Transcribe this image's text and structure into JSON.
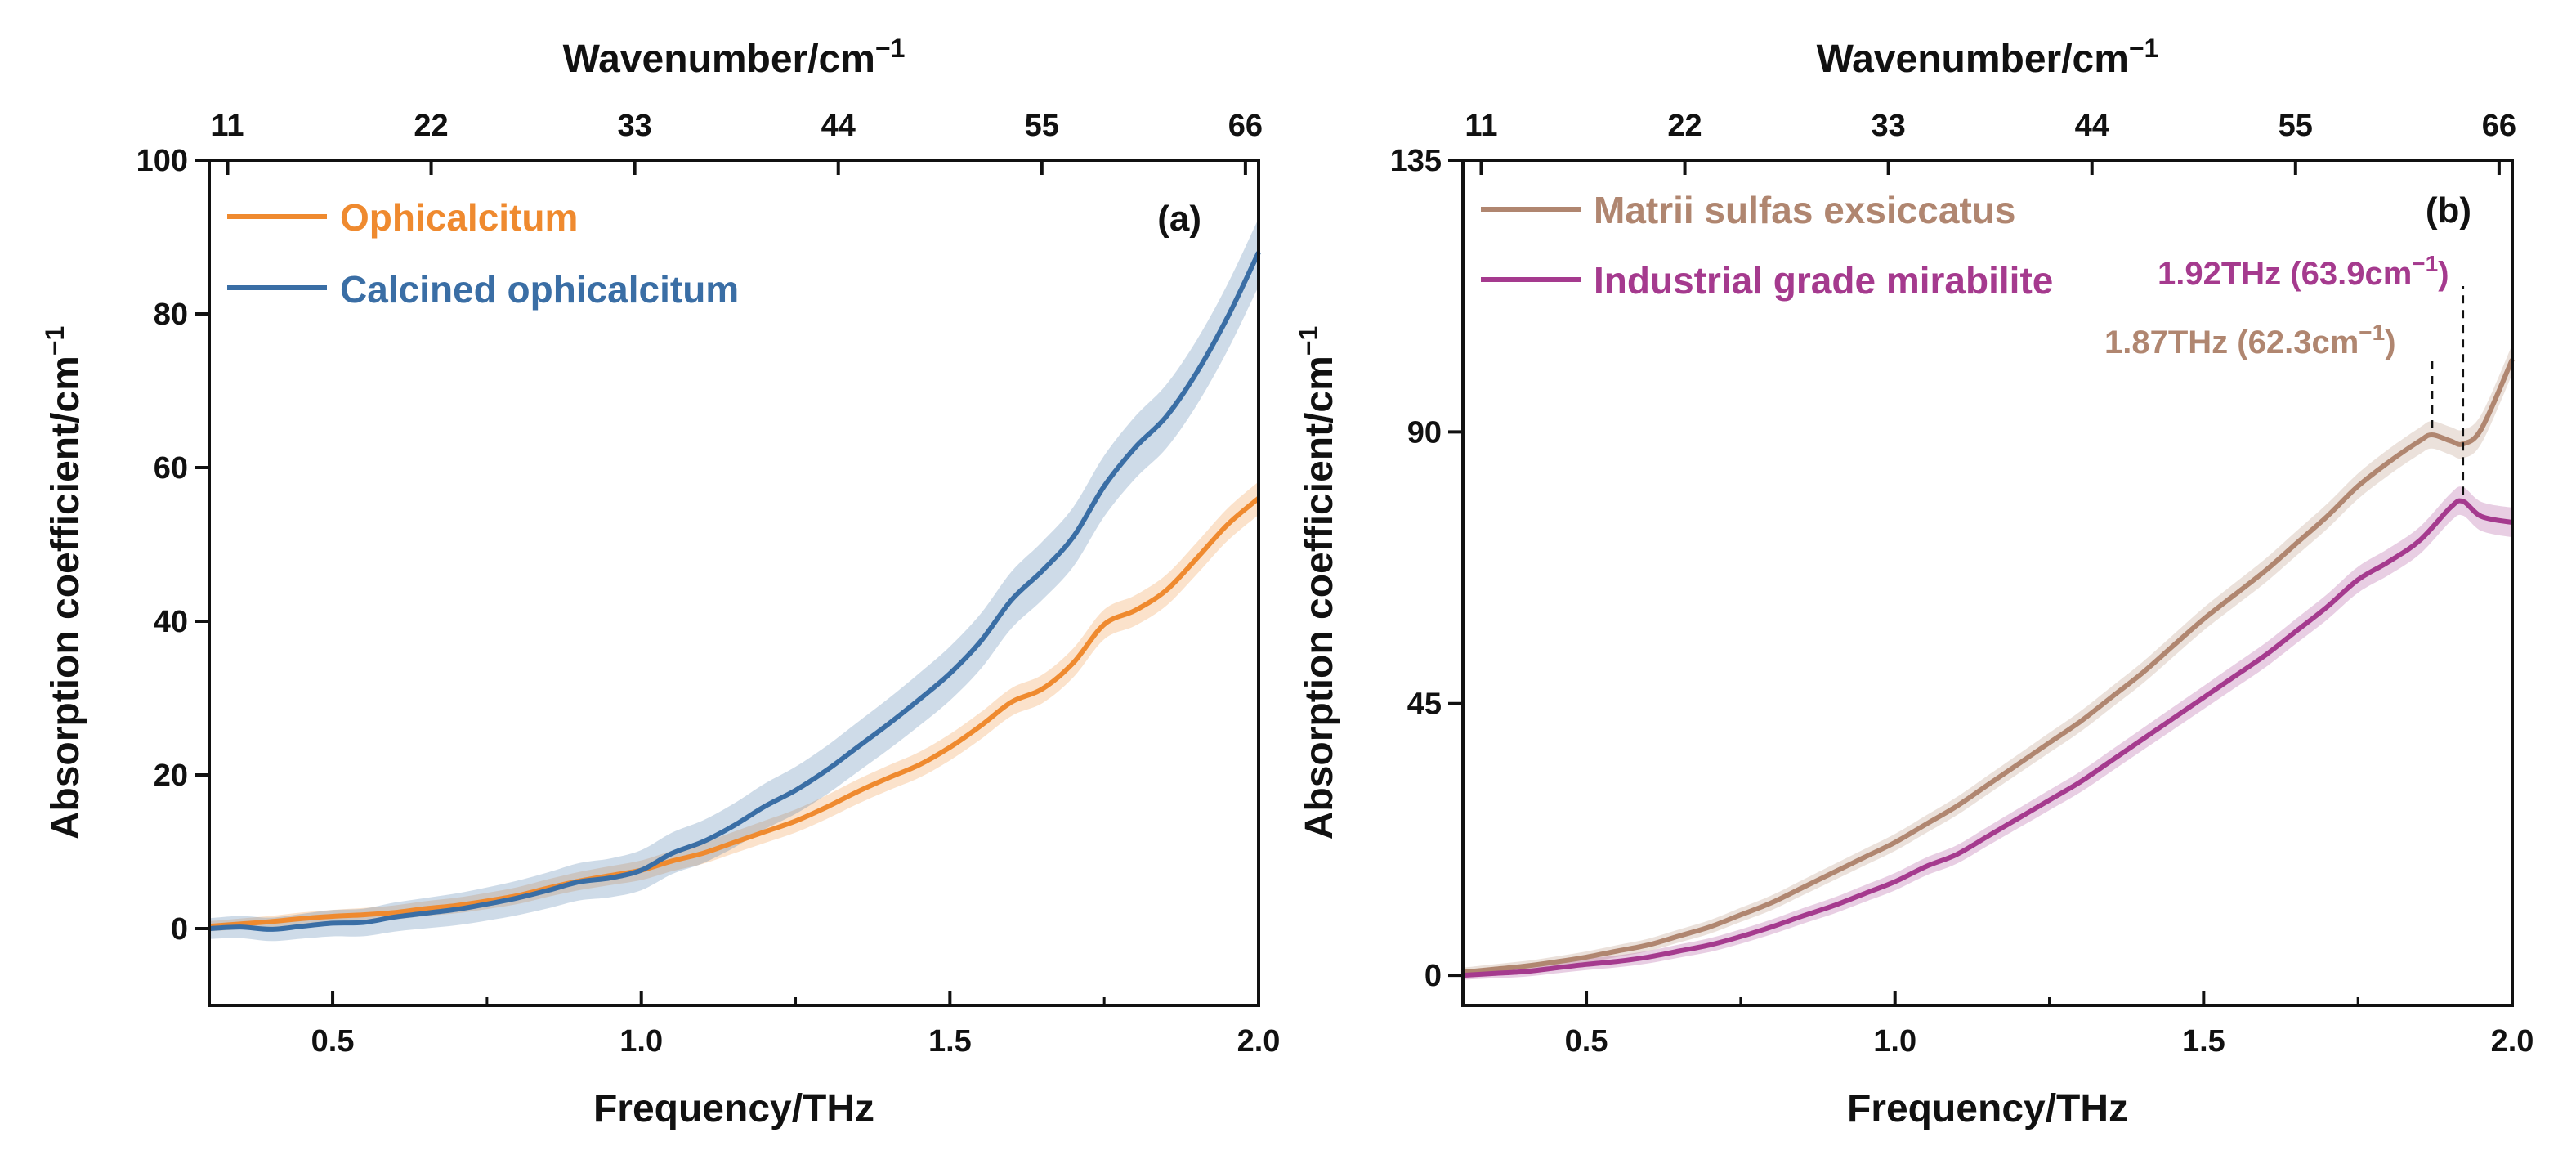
{
  "colors": {
    "ophicalcitum": "#ef8a2f",
    "calcined": "#3a6ea5",
    "matrii": "#b08670",
    "industrial": "#a53a8e",
    "axis": "#111111"
  },
  "chart_data": [
    {
      "type": "line",
      "panel_label": "(a)",
      "xlabel": "Frequency/THz",
      "ylabel": "Absorption coefficient/cm",
      "ylabel_sup": "−1",
      "top_xlabel": "Wavenumber/cm",
      "top_xlabel_sup": "−1",
      "xlim": [
        0.3,
        2.0
      ],
      "ylim": [
        -10,
        100
      ],
      "xticks": [
        "0.5",
        "1.0",
        "1.5",
        "2.0"
      ],
      "xtick_values": [
        0.5,
        1.0,
        1.5,
        2.0
      ],
      "yticks": [
        "0",
        "20",
        "40",
        "60",
        "80",
        "100"
      ],
      "ytick_values": [
        0,
        20,
        40,
        60,
        80,
        100
      ],
      "top_ticks": [
        "11",
        "22",
        "33",
        "44",
        "55",
        "66"
      ],
      "top_tick_values": [
        11,
        22,
        33,
        44,
        55,
        66
      ],
      "legend_position": "top-left",
      "series": [
        {
          "name": "Ophicalcitum",
          "color_key": "ophicalcitum",
          "x": [
            0.3,
            0.35,
            0.4,
            0.45,
            0.5,
            0.55,
            0.6,
            0.65,
            0.7,
            0.75,
            0.8,
            0.85,
            0.9,
            0.95,
            1.0,
            1.05,
            1.1,
            1.15,
            1.2,
            1.25,
            1.3,
            1.35,
            1.4,
            1.45,
            1.5,
            1.55,
            1.6,
            1.65,
            1.7,
            1.75,
            1.8,
            1.85,
            1.9,
            1.95,
            2.0
          ],
          "values": [
            0.3,
            0.6,
            0.9,
            1.3,
            1.6,
            1.8,
            2.1,
            2.6,
            3.0,
            3.6,
            4.3,
            5.3,
            6.2,
            6.9,
            7.6,
            8.8,
            9.8,
            11.2,
            12.6,
            14.0,
            15.8,
            17.8,
            19.6,
            21.3,
            23.6,
            26.4,
            29.5,
            31.2,
            34.6,
            39.6,
            41.4,
            44.0,
            48.2,
            52.6,
            56.0
          ],
          "band": 2.2
        },
        {
          "name": "Calcined ophicalcitum",
          "color_key": "calcined",
          "x": [
            0.3,
            0.35,
            0.4,
            0.45,
            0.5,
            0.55,
            0.6,
            0.65,
            0.7,
            0.75,
            0.8,
            0.85,
            0.9,
            0.95,
            1.0,
            1.05,
            1.1,
            1.15,
            1.2,
            1.25,
            1.3,
            1.35,
            1.4,
            1.45,
            1.5,
            1.55,
            1.6,
            1.65,
            1.7,
            1.75,
            1.8,
            1.85,
            1.9,
            1.95,
            2.0
          ],
          "values": [
            0.0,
            0.2,
            -0.1,
            0.3,
            0.7,
            0.8,
            1.5,
            2.0,
            2.5,
            3.2,
            4.0,
            5.0,
            6.1,
            6.6,
            7.6,
            9.8,
            11.3,
            13.4,
            15.9,
            18.0,
            20.6,
            23.6,
            26.6,
            29.8,
            33.2,
            37.4,
            42.8,
            46.6,
            51.0,
            57.6,
            62.6,
            66.6,
            72.4,
            79.6,
            88.0
          ],
          "band": 4.5
        }
      ]
    },
    {
      "type": "line",
      "panel_label": "(b)",
      "xlabel": "Frequency/THz",
      "ylabel": "Absorption coefficient/cm",
      "ylabel_sup": "−1",
      "top_xlabel": "Wavenumber/cm",
      "top_xlabel_sup": "−1",
      "xlim": [
        0.3,
        2.0
      ],
      "ylim": [
        -5,
        135
      ],
      "xticks": [
        "0.5",
        "1.0",
        "1.5",
        "2.0"
      ],
      "xtick_values": [
        0.5,
        1.0,
        1.5,
        2.0
      ],
      "yticks": [
        "0",
        "45",
        "90",
        "135"
      ],
      "ytick_values": [
        0,
        45,
        90,
        135
      ],
      "top_ticks": [
        "11",
        "22",
        "33",
        "44",
        "55",
        "66"
      ],
      "top_tick_values": [
        11,
        22,
        33,
        44,
        55,
        66
      ],
      "legend_position": "top-left",
      "annotations": [
        {
          "label": "1.92THz (63.9cm",
          "sup": "−1",
          "tail": ")",
          "x": 1.92,
          "color_key": "industrial"
        },
        {
          "label": "1.87THz (62.3cm",
          "sup": "−1",
          "tail": ")",
          "x": 1.87,
          "color_key": "matrii"
        }
      ],
      "series": [
        {
          "name": "Matrii sulfas exsiccatus",
          "color_key": "matrii",
          "x": [
            0.3,
            0.35,
            0.4,
            0.45,
            0.5,
            0.55,
            0.6,
            0.65,
            0.7,
            0.75,
            0.8,
            0.85,
            0.9,
            0.95,
            1.0,
            1.05,
            1.1,
            1.15,
            1.2,
            1.25,
            1.3,
            1.35,
            1.4,
            1.45,
            1.5,
            1.55,
            1.6,
            1.65,
            1.7,
            1.75,
            1.8,
            1.85,
            1.87,
            1.9,
            1.92,
            1.95,
            2.0
          ],
          "values": [
            0.5,
            1.0,
            1.5,
            2.2,
            3.0,
            4.0,
            5.0,
            6.5,
            8.0,
            10.0,
            12.0,
            14.5,
            17.0,
            19.5,
            22.0,
            25.0,
            28.0,
            31.5,
            35.0,
            38.5,
            42.0,
            46.0,
            50.0,
            54.5,
            59.0,
            63.0,
            67.0,
            71.5,
            76.0,
            81.0,
            85.0,
            88.5,
            89.5,
            88.5,
            88.0,
            90.5,
            102.0
          ],
          "band": 2.5
        },
        {
          "name": "Industrial grade mirabilite",
          "color_key": "industrial",
          "x": [
            0.3,
            0.35,
            0.4,
            0.45,
            0.5,
            0.55,
            0.6,
            0.65,
            0.7,
            0.75,
            0.8,
            0.85,
            0.9,
            0.95,
            1.0,
            1.05,
            1.1,
            1.15,
            1.2,
            1.25,
            1.3,
            1.35,
            1.4,
            1.45,
            1.5,
            1.55,
            1.6,
            1.65,
            1.7,
            1.75,
            1.8,
            1.85,
            1.9,
            1.92,
            1.95,
            2.0
          ],
          "values": [
            0.0,
            0.3,
            0.6,
            1.2,
            1.8,
            2.3,
            3.0,
            4.0,
            5.0,
            6.4,
            8.0,
            9.8,
            11.5,
            13.5,
            15.5,
            18.0,
            20.0,
            23.0,
            26.0,
            29.0,
            32.0,
            35.5,
            39.0,
            42.5,
            46.0,
            49.5,
            53.0,
            57.0,
            61.0,
            65.5,
            68.5,
            72.0,
            77.5,
            78.5,
            76.0,
            75.0
          ],
          "band": 2.5
        }
      ]
    }
  ]
}
